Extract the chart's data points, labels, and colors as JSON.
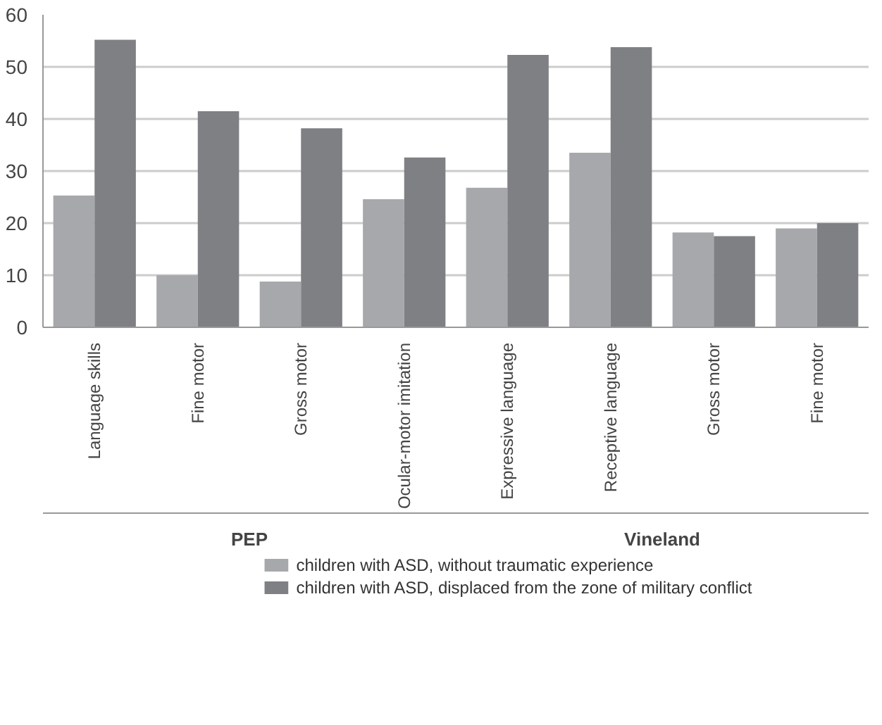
{
  "chart_data": {
    "type": "bar",
    "categories": [
      "Language skills",
      "Fine motor",
      "Gross motor",
      "Ocular-motor imitation",
      "Expressive language",
      "Receptive language",
      "Gross motor",
      "Fine motor"
    ],
    "series": [
      {
        "name": "children with ASD, without traumatic experience",
        "color": "#a7a8ab",
        "values": [
          25.3,
          10,
          8.8,
          24.6,
          26.8,
          33.5,
          18.2,
          19.0
        ]
      },
      {
        "name": "children with ASD, displaced from the zone of military conflict",
        "color": "#7f8083",
        "values": [
          55.2,
          41.5,
          38.2,
          32.6,
          52.3,
          53.8,
          17.5,
          20.0
        ]
      }
    ],
    "annotations": [
      "PEP",
      "Vineland"
    ],
    "ylim": [
      0,
      60
    ],
    "yticks": [
      0,
      10,
      20,
      30,
      40,
      50,
      60
    ],
    "grid": "y",
    "legend": "bottom"
  }
}
